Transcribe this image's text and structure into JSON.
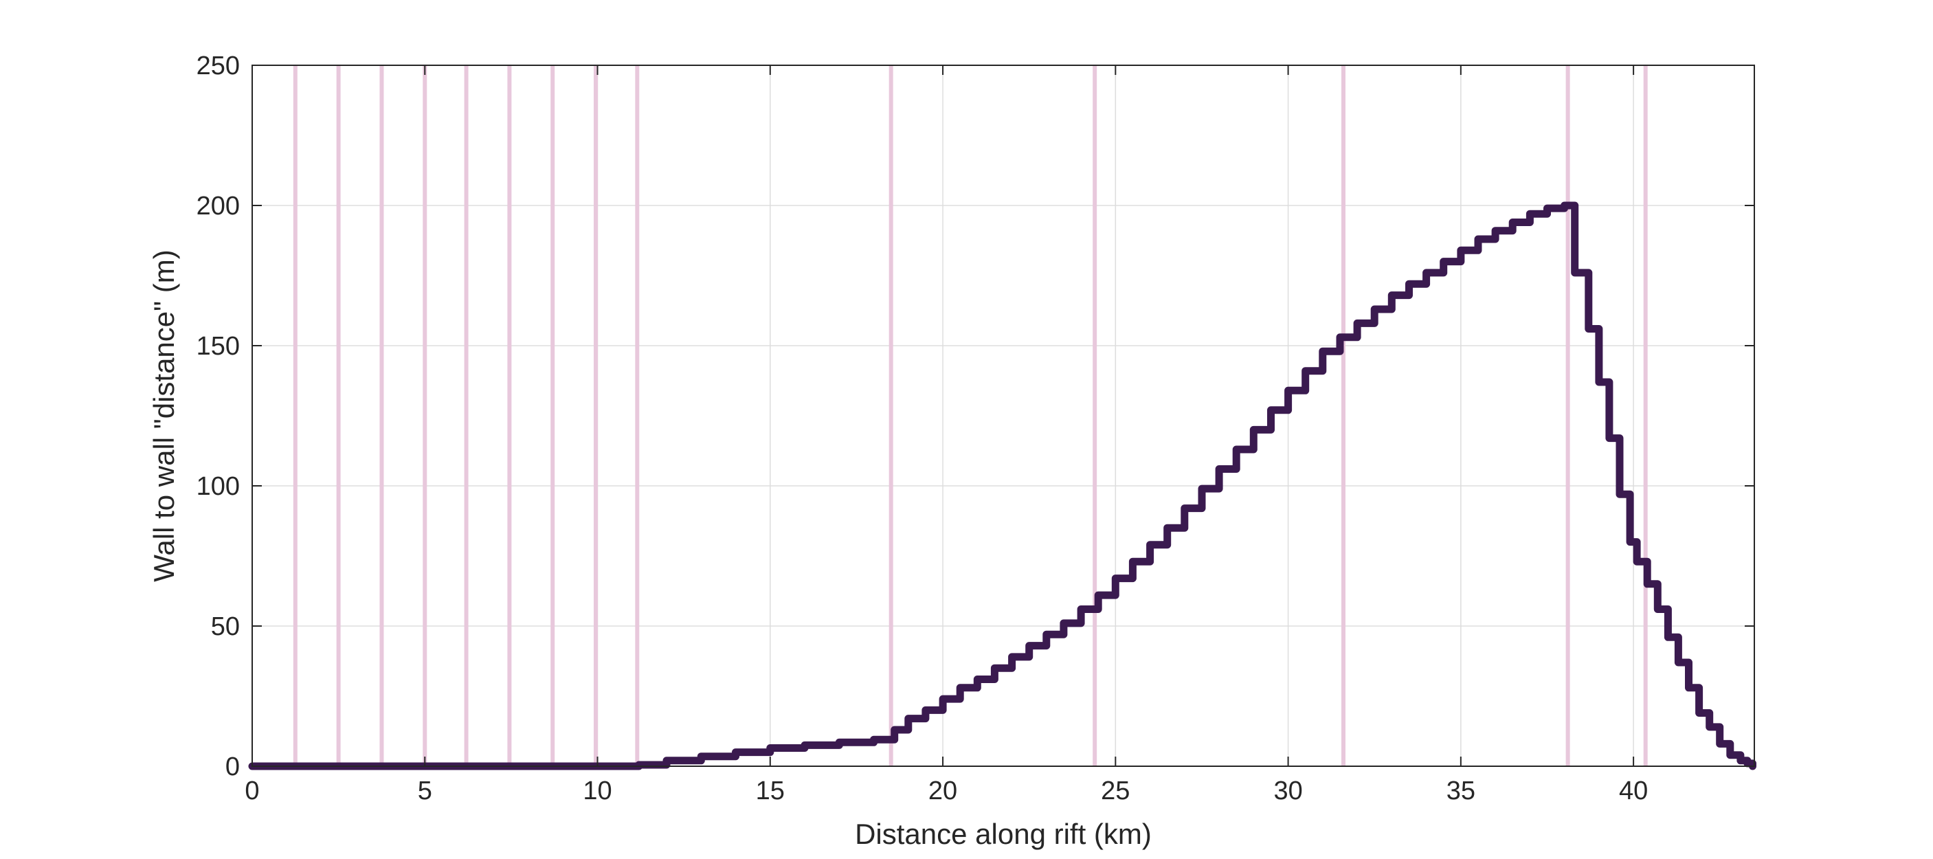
{
  "colors": {
    "background": "#ffffff",
    "line": "#3a1a4f",
    "markers": "#e8c8dc",
    "grid": "#dddddd",
    "axis": "#262626"
  },
  "chart_data": {
    "type": "line",
    "title": "",
    "xlabel": "Distance along rift (km)",
    "ylabel": "Wall to wall \"distance\" (m)",
    "xlim": [
      0,
      43.5
    ],
    "ylim": [
      0,
      250
    ],
    "x_ticks": [
      0,
      5,
      10,
      15,
      20,
      25,
      30,
      35,
      40
    ],
    "y_ticks": [
      0,
      50,
      100,
      150,
      200,
      250
    ],
    "x_tick_labels": [
      "0",
      "5",
      "10",
      "15",
      "20",
      "25",
      "30",
      "35",
      "40"
    ],
    "y_tick_labels": [
      "0",
      "50",
      "100",
      "150",
      "200",
      "250"
    ],
    "grid": true,
    "box": true,
    "series": [
      {
        "style": "step",
        "x": [
          0,
          11.2,
          12.0,
          13.0,
          14.0,
          15.0,
          16.0,
          17.0,
          18.0,
          18.6,
          19.0,
          19.5,
          20.0,
          20.5,
          21.0,
          21.5,
          22.0,
          22.5,
          23.0,
          23.5,
          24.0,
          24.5,
          25.0,
          25.5,
          26.0,
          26.5,
          27.0,
          27.5,
          28.0,
          28.5,
          29.0,
          29.5,
          30.0,
          30.5,
          31.0,
          31.5,
          32.0,
          32.5,
          33.0,
          33.5,
          34.0,
          34.5,
          35.0,
          35.5,
          36.0,
          36.5,
          37.0,
          37.5,
          38.0,
          38.3,
          38.7,
          39.0,
          39.3,
          39.6,
          39.9,
          40.1,
          40.4,
          40.7,
          41.0,
          41.3,
          41.6,
          41.9,
          42.2,
          42.5,
          42.8,
          43.1,
          43.3,
          43.45
        ],
        "y": [
          0,
          0.5,
          2,
          3.5,
          5,
          6.5,
          7.5,
          8.5,
          9.5,
          13,
          17,
          20,
          24,
          28,
          31,
          35,
          39,
          43,
          47,
          51,
          56,
          61,
          67,
          73,
          79,
          85,
          92,
          99,
          106,
          113,
          120,
          127,
          134,
          141,
          148,
          153,
          158,
          163,
          168,
          172,
          176,
          180,
          184,
          188,
          191,
          194,
          197,
          199,
          200,
          176,
          156,
          137,
          117,
          97,
          80,
          73,
          65,
          56,
          46,
          37,
          28,
          19,
          14,
          8,
          4,
          2,
          1,
          0
        ]
      }
    ],
    "vertical_markers_x": [
      1.25,
      2.5,
      3.75,
      5.0,
      6.2,
      7.45,
      8.7,
      9.95,
      11.15,
      18.5,
      24.4,
      31.6,
      38.1,
      40.35
    ]
  }
}
